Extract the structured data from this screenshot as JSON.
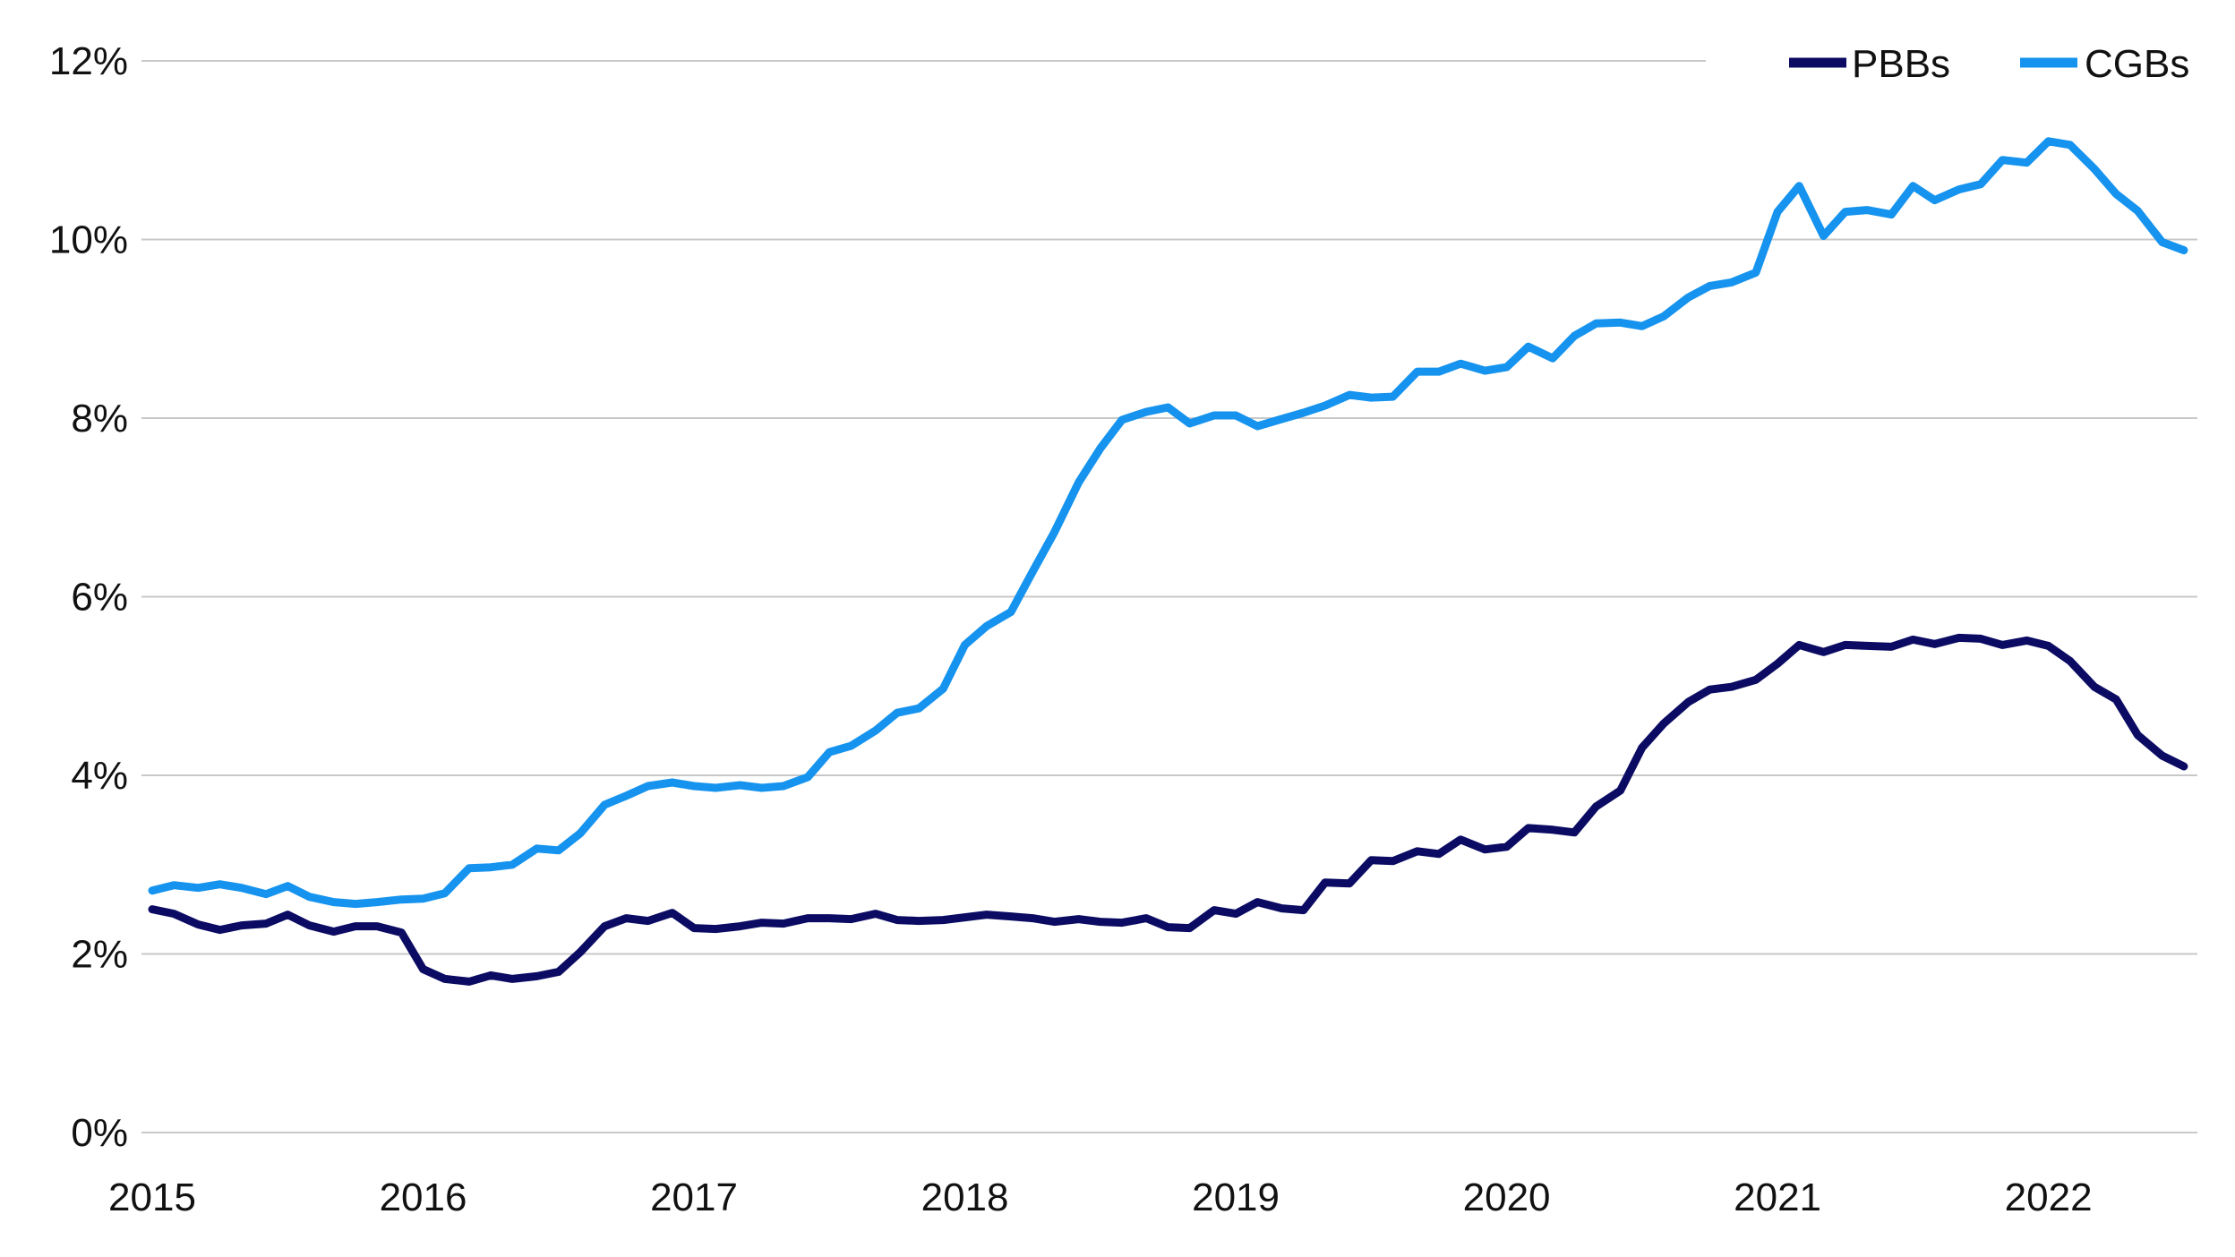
{
  "chart_data": {
    "type": "line",
    "title": "",
    "xlabel": "",
    "ylabel": "",
    "ylim": [
      0,
      12
    ],
    "xlim": [
      2015.0,
      2022.55
    ],
    "y_ticks": [
      {
        "value": 0,
        "label": "0%"
      },
      {
        "value": 2,
        "label": "2%"
      },
      {
        "value": 4,
        "label": "4%"
      },
      {
        "value": 6,
        "label": "6%"
      },
      {
        "value": 8,
        "label": "8%"
      },
      {
        "value": 10,
        "label": "10%"
      },
      {
        "value": 12,
        "label": "12%"
      }
    ],
    "x_ticks": [
      {
        "value": 2015,
        "label": "2015"
      },
      {
        "value": 2016,
        "label": "2016"
      },
      {
        "value": 2017,
        "label": "2017"
      },
      {
        "value": 2018,
        "label": "2018"
      },
      {
        "value": 2019,
        "label": "2019"
      },
      {
        "value": 2020,
        "label": "2020"
      },
      {
        "value": 2021,
        "label": "2021"
      },
      {
        "value": 2022,
        "label": "2022"
      }
    ],
    "grid": "horizontal",
    "legend_position": "top-right",
    "series": [
      {
        "name": "PBBs",
        "color": "#0b0b63",
        "points": [
          [
            2015.0,
            2.5
          ],
          [
            2015.08,
            2.45
          ],
          [
            2015.17,
            2.33
          ],
          [
            2015.25,
            2.27
          ],
          [
            2015.33,
            2.32
          ],
          [
            2015.42,
            2.34
          ],
          [
            2015.5,
            2.44
          ],
          [
            2015.58,
            2.32
          ],
          [
            2015.67,
            2.25
          ],
          [
            2015.75,
            2.31
          ],
          [
            2015.83,
            2.31
          ],
          [
            2015.92,
            2.24
          ],
          [
            2016.0,
            1.83
          ],
          [
            2016.08,
            1.72
          ],
          [
            2016.17,
            1.69
          ],
          [
            2016.25,
            1.76
          ],
          [
            2016.33,
            1.72
          ],
          [
            2016.42,
            1.75
          ],
          [
            2016.5,
            1.8
          ],
          [
            2016.58,
            2.02
          ],
          [
            2016.67,
            2.31
          ],
          [
            2016.75,
            2.4
          ],
          [
            2016.83,
            2.37
          ],
          [
            2016.92,
            2.46
          ],
          [
            2017.0,
            2.29
          ],
          [
            2017.08,
            2.28
          ],
          [
            2017.17,
            2.31
          ],
          [
            2017.25,
            2.35
          ],
          [
            2017.33,
            2.34
          ],
          [
            2017.42,
            2.4
          ],
          [
            2017.5,
            2.4
          ],
          [
            2017.58,
            2.39
          ],
          [
            2017.67,
            2.45
          ],
          [
            2017.75,
            2.38
          ],
          [
            2017.83,
            2.37
          ],
          [
            2017.92,
            2.38
          ],
          [
            2018.0,
            2.41
          ],
          [
            2018.08,
            2.44
          ],
          [
            2018.17,
            2.42
          ],
          [
            2018.25,
            2.4
          ],
          [
            2018.33,
            2.36
          ],
          [
            2018.42,
            2.39
          ],
          [
            2018.5,
            2.36
          ],
          [
            2018.58,
            2.35
          ],
          [
            2018.67,
            2.4
          ],
          [
            2018.75,
            2.3
          ],
          [
            2018.83,
            2.29
          ],
          [
            2018.92,
            2.49
          ],
          [
            2019.0,
            2.45
          ],
          [
            2019.08,
            2.58
          ],
          [
            2019.17,
            2.51
          ],
          [
            2019.25,
            2.49
          ],
          [
            2019.33,
            2.8
          ],
          [
            2019.42,
            2.79
          ],
          [
            2019.5,
            3.05
          ],
          [
            2019.58,
            3.04
          ],
          [
            2019.67,
            3.15
          ],
          [
            2019.75,
            3.12
          ],
          [
            2019.83,
            3.28
          ],
          [
            2019.92,
            3.17
          ],
          [
            2020.0,
            3.2
          ],
          [
            2020.08,
            3.41
          ],
          [
            2020.17,
            3.39
          ],
          [
            2020.25,
            3.36
          ],
          [
            2020.33,
            3.65
          ],
          [
            2020.42,
            3.83
          ],
          [
            2020.5,
            4.31
          ],
          [
            2020.58,
            4.58
          ],
          [
            2020.67,
            4.82
          ],
          [
            2020.75,
            4.96
          ],
          [
            2020.83,
            4.99
          ],
          [
            2020.92,
            5.07
          ],
          [
            2021.0,
            5.25
          ],
          [
            2021.08,
            5.46
          ],
          [
            2021.17,
            5.38
          ],
          [
            2021.25,
            5.46
          ],
          [
            2021.33,
            5.45
          ],
          [
            2021.42,
            5.44
          ],
          [
            2021.5,
            5.52
          ],
          [
            2021.58,
            5.47
          ],
          [
            2021.67,
            5.54
          ],
          [
            2021.75,
            5.53
          ],
          [
            2021.83,
            5.46
          ],
          [
            2021.92,
            5.51
          ],
          [
            2022.0,
            5.45
          ],
          [
            2022.08,
            5.28
          ],
          [
            2022.17,
            4.99
          ],
          [
            2022.25,
            4.85
          ],
          [
            2022.33,
            4.45
          ],
          [
            2022.42,
            4.22
          ],
          [
            2022.5,
            4.1
          ]
        ]
      },
      {
        "name": "CGBs",
        "color": "#1593ee",
        "points": [
          [
            2015.0,
            2.71
          ],
          [
            2015.08,
            2.77
          ],
          [
            2015.17,
            2.74
          ],
          [
            2015.25,
            2.78
          ],
          [
            2015.33,
            2.74
          ],
          [
            2015.42,
            2.67
          ],
          [
            2015.5,
            2.76
          ],
          [
            2015.58,
            2.64
          ],
          [
            2015.67,
            2.58
          ],
          [
            2015.75,
            2.56
          ],
          [
            2015.83,
            2.58
          ],
          [
            2015.92,
            2.61
          ],
          [
            2016.0,
            2.62
          ],
          [
            2016.08,
            2.68
          ],
          [
            2016.17,
            2.96
          ],
          [
            2016.25,
            2.97
          ],
          [
            2016.33,
            3.0
          ],
          [
            2016.42,
            3.18
          ],
          [
            2016.5,
            3.16
          ],
          [
            2016.58,
            3.35
          ],
          [
            2016.67,
            3.67
          ],
          [
            2016.75,
            3.77
          ],
          [
            2016.83,
            3.88
          ],
          [
            2016.92,
            3.92
          ],
          [
            2017.0,
            3.88
          ],
          [
            2017.08,
            3.86
          ],
          [
            2017.17,
            3.89
          ],
          [
            2017.25,
            3.86
          ],
          [
            2017.33,
            3.88
          ],
          [
            2017.42,
            3.98
          ],
          [
            2017.5,
            4.26
          ],
          [
            2017.58,
            4.33
          ],
          [
            2017.67,
            4.5
          ],
          [
            2017.75,
            4.7
          ],
          [
            2017.83,
            4.75
          ],
          [
            2017.92,
            4.97
          ],
          [
            2018.0,
            5.46
          ],
          [
            2018.08,
            5.67
          ],
          [
            2018.17,
            5.83
          ],
          [
            2018.25,
            6.28
          ],
          [
            2018.33,
            6.72
          ],
          [
            2018.42,
            7.28
          ],
          [
            2018.5,
            7.66
          ],
          [
            2018.58,
            7.98
          ],
          [
            2018.67,
            8.07
          ],
          [
            2018.75,
            8.12
          ],
          [
            2018.83,
            7.94
          ],
          [
            2018.92,
            8.03
          ],
          [
            2019.0,
            8.03
          ],
          [
            2019.08,
            7.91
          ],
          [
            2019.17,
            7.99
          ],
          [
            2019.25,
            8.06
          ],
          [
            2019.33,
            8.14
          ],
          [
            2019.42,
            8.26
          ],
          [
            2019.5,
            8.23
          ],
          [
            2019.58,
            8.24
          ],
          [
            2019.67,
            8.52
          ],
          [
            2019.75,
            8.52
          ],
          [
            2019.83,
            8.61
          ],
          [
            2019.92,
            8.53
          ],
          [
            2020.0,
            8.57
          ],
          [
            2020.08,
            8.8
          ],
          [
            2020.17,
            8.67
          ],
          [
            2020.25,
            8.92
          ],
          [
            2020.33,
            9.06
          ],
          [
            2020.42,
            9.07
          ],
          [
            2020.5,
            9.03
          ],
          [
            2020.58,
            9.14
          ],
          [
            2020.67,
            9.35
          ],
          [
            2020.75,
            9.48
          ],
          [
            2020.83,
            9.52
          ],
          [
            2020.92,
            9.63
          ],
          [
            2021.0,
            10.31
          ],
          [
            2021.08,
            10.6
          ],
          [
            2021.17,
            10.04
          ],
          [
            2021.25,
            10.31
          ],
          [
            2021.33,
            10.33
          ],
          [
            2021.42,
            10.28
          ],
          [
            2021.5,
            10.6
          ],
          [
            2021.58,
            10.44
          ],
          [
            2021.67,
            10.56
          ],
          [
            2021.75,
            10.62
          ],
          [
            2021.83,
            10.89
          ],
          [
            2021.92,
            10.86
          ],
          [
            2022.0,
            11.1
          ],
          [
            2022.08,
            11.06
          ],
          [
            2022.17,
            10.79
          ],
          [
            2022.25,
            10.51
          ],
          [
            2022.33,
            10.32
          ],
          [
            2022.42,
            9.97
          ],
          [
            2022.5,
            9.88
          ]
        ]
      }
    ]
  }
}
